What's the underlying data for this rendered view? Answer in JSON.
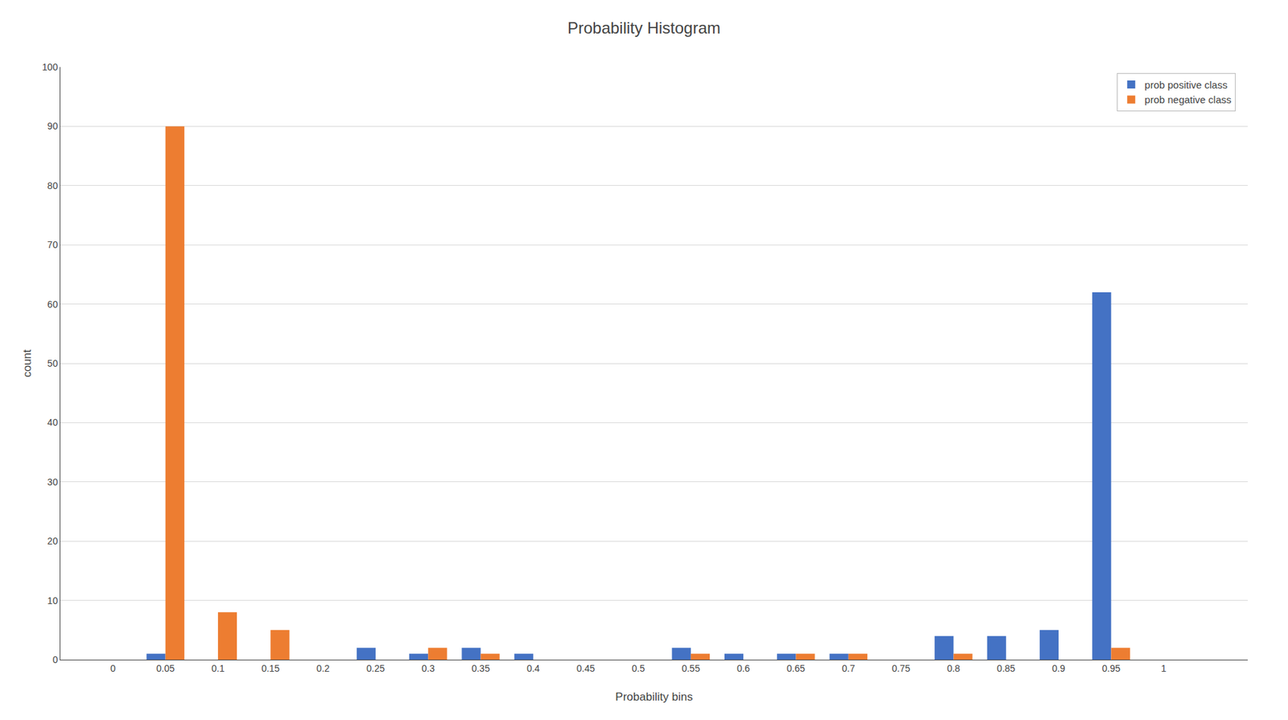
{
  "chart_data": {
    "type": "bar",
    "title": "Probability Histogram",
    "xlabel": "Probability bins",
    "ylabel": "count",
    "x": [
      0,
      0.05,
      0.1,
      0.15,
      0.2,
      0.25,
      0.3,
      0.35,
      0.4,
      0.45,
      0.5,
      0.55,
      0.6,
      0.65,
      0.7,
      0.75,
      0.8,
      0.85,
      0.9,
      0.95,
      1.0
    ],
    "series": [
      {
        "name": "prob positive class",
        "color": "#4472C4",
        "values": [
          0,
          1,
          0,
          0,
          0,
          2,
          1,
          2,
          1,
          0,
          0,
          2,
          1,
          1,
          1,
          0,
          4,
          4,
          5,
          62,
          0
        ]
      },
      {
        "name": "prob negative class",
        "color": "#ED7D31",
        "values": [
          0,
          90,
          8,
          5,
          0,
          0,
          2,
          1,
          0,
          0,
          0,
          1,
          0,
          1,
          1,
          0,
          1,
          0,
          0,
          2,
          0
        ]
      }
    ],
    "xlim": [
      -0.05,
      1.08
    ],
    "xticks": [
      0,
      0.05,
      0.1,
      0.15,
      0.2,
      0.25,
      0.3,
      0.35,
      0.4,
      0.45,
      0.5,
      0.55,
      0.6,
      0.65,
      0.7,
      0.75,
      0.8,
      0.85,
      0.9,
      0.95,
      1
    ],
    "ylim": [
      0,
      100
    ],
    "yticks": [
      0,
      10,
      20,
      30,
      40,
      50,
      60,
      70,
      80,
      90,
      100
    ],
    "grid": "y",
    "legend": "upper right"
  }
}
